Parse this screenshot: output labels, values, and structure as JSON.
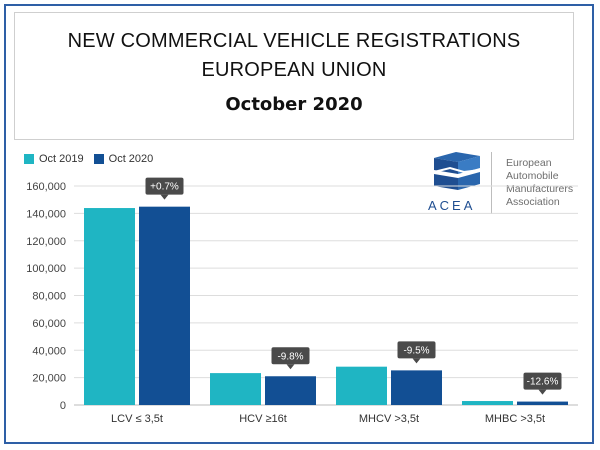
{
  "title": {
    "line1": "NEW COMMERCIAL VEHICLE REGISTRATIONS",
    "line2": "EUROPEAN UNION",
    "subtitle": "October 2020"
  },
  "logo": {
    "acronym": "ACEA",
    "name_lines": [
      "European",
      "Automobile",
      "Manufacturers",
      "Association"
    ]
  },
  "colors": {
    "oct2019": "#1fb5c3",
    "oct2020": "#124f94",
    "callout": "#4a4a4a",
    "grid": "#dddddd",
    "frame": "#2e5fa6"
  },
  "chart_data": {
    "type": "bar",
    "title": "",
    "xlabel": "",
    "ylabel": "",
    "categories": [
      "LCV ≤ 3,5t",
      "HCV ≥16t",
      "MHCV >3,5t",
      "MHBC >3,5t"
    ],
    "series": [
      {
        "name": "Oct 2019",
        "values": [
          143900,
          23300,
          28000,
          2900
        ]
      },
      {
        "name": "Oct 2020",
        "values": [
          144900,
          21000,
          25300,
          2500
        ]
      }
    ],
    "changes": [
      "+0.7%",
      "-9.8%",
      "-9.5%",
      "-12.6%"
    ],
    "ylim": [
      0,
      160000
    ],
    "yticks": [
      "0",
      "20,000",
      "40,000",
      "60,000",
      "80,000",
      "100,000",
      "120,000",
      "140,000",
      "160,000"
    ],
    "ytick_values": [
      0,
      20000,
      40000,
      60000,
      80000,
      100000,
      120000,
      140000,
      160000
    ],
    "legend": "top-left",
    "grid": true
  }
}
